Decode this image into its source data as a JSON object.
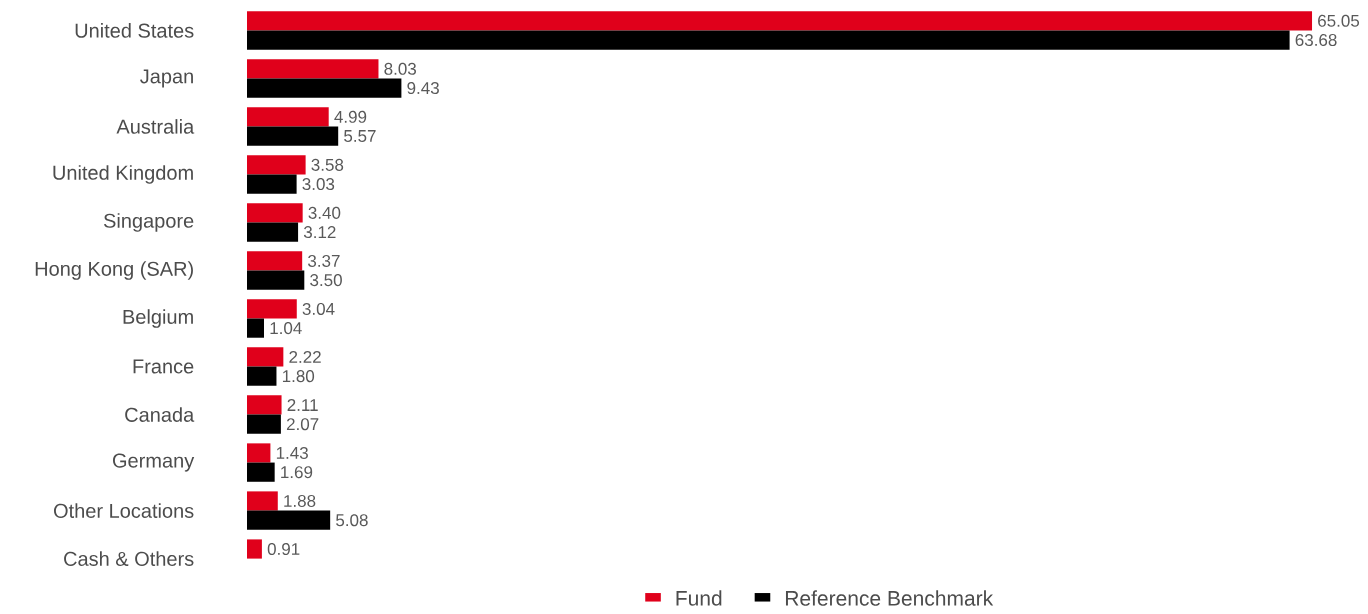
{
  "chart_data": {
    "type": "bar",
    "orientation": "horizontal",
    "categories": [
      "United States",
      "Japan",
      "Australia",
      "United Kingdom",
      "Singapore",
      "Hong Kong (SAR)",
      "Belgium",
      "France",
      "Canada",
      "Germany",
      "Other Locations",
      "Cash & Others"
    ],
    "series": [
      {
        "name": "Fund",
        "color": "#e0001b",
        "values": [
          65.05,
          8.03,
          4.99,
          3.58,
          3.4,
          3.37,
          3.04,
          2.22,
          2.11,
          1.43,
          1.88,
          0.91
        ],
        "value_labels": [
          "65.05",
          "8.03",
          "4.99",
          "3.58",
          "3.40",
          "3.37",
          "3.04",
          "2.22",
          "2.11",
          "1.43",
          "1.88",
          "0.91"
        ]
      },
      {
        "name": "Reference Benchmark",
        "color": "#000000",
        "values": [
          63.68,
          9.43,
          5.57,
          3.03,
          3.12,
          3.5,
          1.04,
          1.8,
          2.07,
          1.69,
          5.08,
          null
        ],
        "value_labels": [
          "63.68",
          "9.43",
          "5.57",
          "3.03",
          "3.12",
          "3.50",
          "1.04",
          "1.80",
          "2.07",
          "1.69",
          "5.08",
          null
        ]
      }
    ],
    "legend": "bottom"
  }
}
